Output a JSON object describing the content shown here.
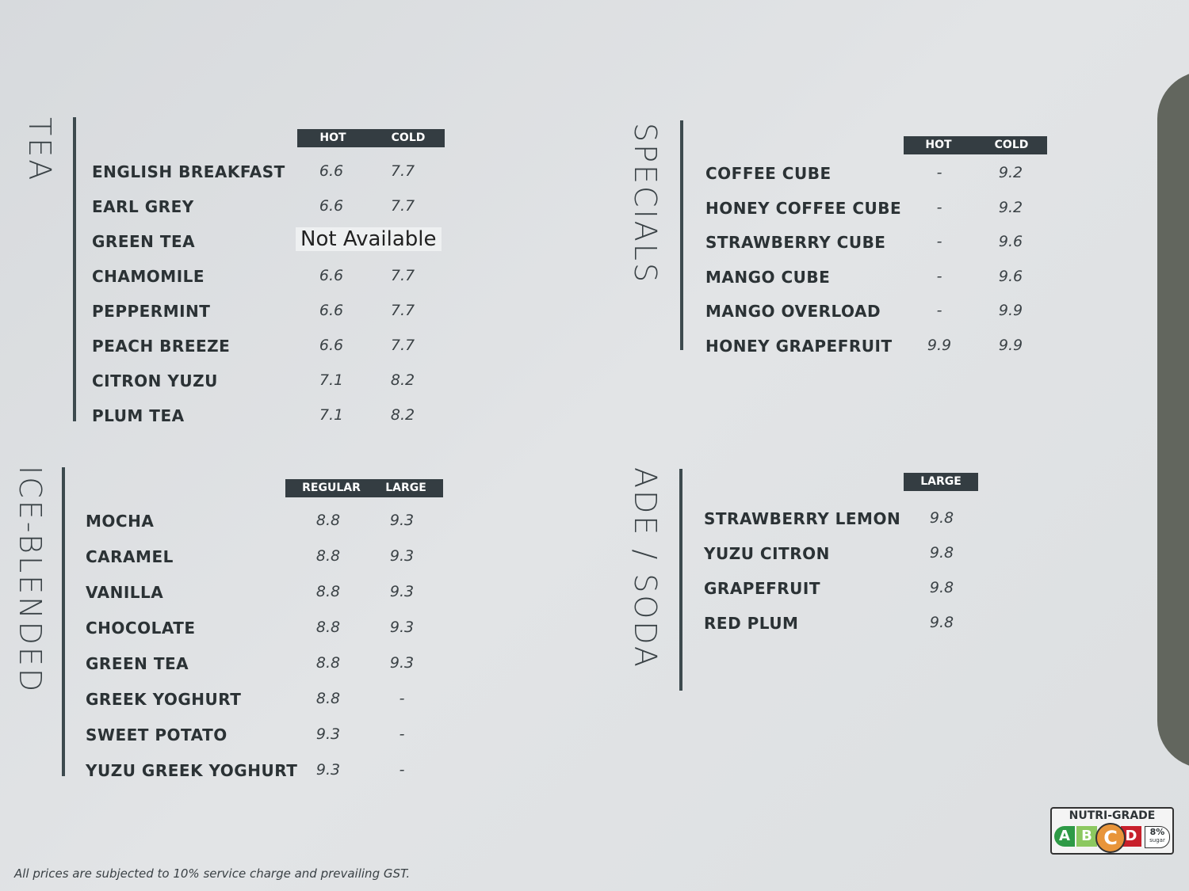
{
  "tea": {
    "title": "TEA",
    "headers": [
      "HOT",
      "COLD"
    ],
    "items": [
      {
        "name": "ENGLISH BREAKFAST",
        "hot": "6.6",
        "cold": "7.7"
      },
      {
        "name": "EARL GREY",
        "hot": "6.6",
        "cold": "7.7"
      },
      {
        "name": "GREEN TEA",
        "note": "Not  Available"
      },
      {
        "name": "CHAMOMILE",
        "hot": "6.6",
        "cold": "7.7"
      },
      {
        "name": "PEPPERMINT",
        "hot": "6.6",
        "cold": "7.7"
      },
      {
        "name": "PEACH BREEZE",
        "hot": "6.6",
        "cold": "7.7"
      },
      {
        "name": "CITRON YUZU",
        "hot": "7.1",
        "cold": "8.2"
      },
      {
        "name": "PLUM TEA",
        "hot": "7.1",
        "cold": "8.2"
      }
    ]
  },
  "ice_blended": {
    "title": "ICE-BLENDED",
    "headers": [
      "REGULAR",
      "LARGE"
    ],
    "items": [
      {
        "name": "MOCHA",
        "regular": "8.8",
        "large": "9.3"
      },
      {
        "name": "CARAMEL",
        "regular": "8.8",
        "large": "9.3"
      },
      {
        "name": "VANILLA",
        "regular": "8.8",
        "large": "9.3"
      },
      {
        "name": "CHOCOLATE",
        "regular": "8.8",
        "large": "9.3"
      },
      {
        "name": "GREEN TEA",
        "regular": "8.8",
        "large": "9.3"
      },
      {
        "name": "GREEK YOGHURT",
        "regular": "8.8",
        "large": "-"
      },
      {
        "name": "SWEET POTATO",
        "regular": "9.3",
        "large": "-"
      },
      {
        "name": "YUZU GREEK YOGHURT",
        "regular": "9.3",
        "large": "-"
      }
    ]
  },
  "specials": {
    "title": "SPECIALS",
    "headers": [
      "HOT",
      "COLD"
    ],
    "items": [
      {
        "name": "COFFEE CUBE",
        "hot": "-",
        "cold": "9.2"
      },
      {
        "name": "HONEY COFFEE CUBE",
        "hot": "-",
        "cold": "9.2"
      },
      {
        "name": "STRAWBERRY CUBE",
        "hot": "-",
        "cold": "9.6"
      },
      {
        "name": "MANGO CUBE",
        "hot": "-",
        "cold": "9.6"
      },
      {
        "name": "MANGO OVERLOAD",
        "hot": "-",
        "cold": "9.9"
      },
      {
        "name": "HONEY GRAPEFRUIT",
        "hot": "9.9",
        "cold": "9.9"
      }
    ]
  },
  "ade_soda": {
    "title": "ADE / SODA",
    "headers": [
      "LARGE"
    ],
    "items": [
      {
        "name": "STRAWBERRY LEMON",
        "large": "9.8"
      },
      {
        "name": "YUZU CITRON",
        "large": "9.8"
      },
      {
        "name": "GRAPEFRUIT",
        "large": "9.8"
      },
      {
        "name": "RED PLUM",
        "large": "9.8"
      }
    ]
  },
  "footer": "All prices are subjected to 10% service charge and prevailing GST.",
  "nutri_grade": {
    "title": "NUTRI-GRADE",
    "grades": [
      "A",
      "B",
      "C",
      "D"
    ],
    "selected": "C",
    "sugar": "8%",
    "sugar_label": "sugar",
    "colors": {
      "A": "#2e9a46",
      "B": "#8cc860",
      "C": "#e8953a",
      "D": "#c8202c"
    }
  }
}
